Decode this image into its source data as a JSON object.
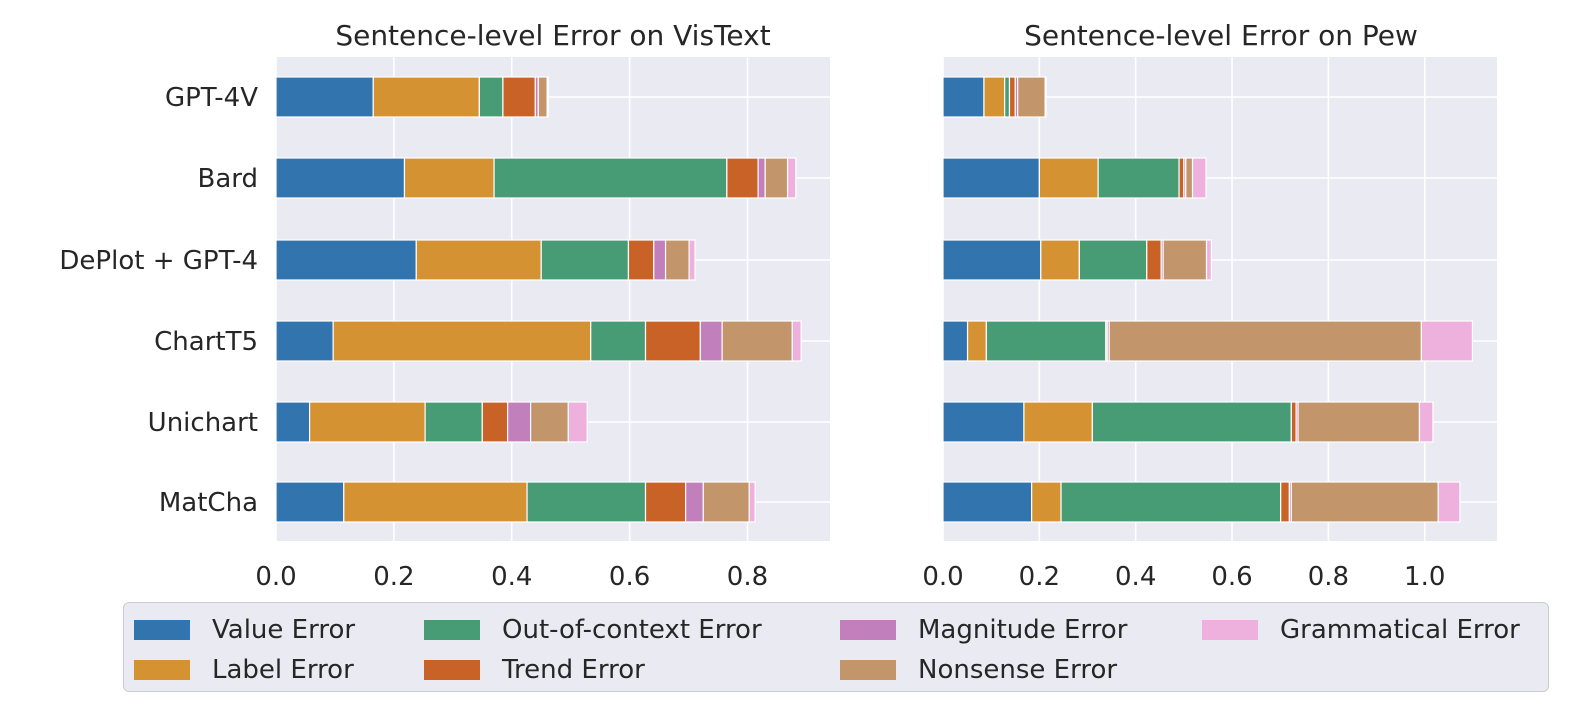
{
  "chart_data": [
    {
      "type": "bar",
      "orientation": "horizontal",
      "stacked": true,
      "title": "Sentence-level Error on VisText",
      "categories": [
        "GPT-4V",
        "Bard",
        "DePlot + GPT-4",
        "ChartT5",
        "Unichart",
        "MatCha"
      ],
      "series": [
        {
          "name": "Value Error",
          "values": [
            0.165,
            0.218,
            0.238,
            0.097,
            0.057,
            0.115
          ]
        },
        {
          "name": "Label Error",
          "values": [
            0.18,
            0.152,
            0.212,
            0.437,
            0.196,
            0.311
          ]
        },
        {
          "name": "Out-of-context Error",
          "values": [
            0.04,
            0.395,
            0.148,
            0.093,
            0.097,
            0.201
          ]
        },
        {
          "name": "Trend Error",
          "values": [
            0.055,
            0.053,
            0.043,
            0.093,
            0.043,
            0.068
          ]
        },
        {
          "name": "Magnitude Error",
          "values": [
            0.005,
            0.012,
            0.02,
            0.037,
            0.039,
            0.03
          ]
        },
        {
          "name": "Nonsense Error",
          "values": [
            0.015,
            0.038,
            0.04,
            0.119,
            0.064,
            0.078
          ]
        },
        {
          "name": "Grammatical Error",
          "values": [
            0.002,
            0.014,
            0.01,
            0.015,
            0.032,
            0.01
          ]
        }
      ],
      "xlim": [
        0,
        0.94
      ],
      "xticks": [
        "0.0",
        "0.2",
        "0.4",
        "0.6",
        "0.8"
      ],
      "grid": true
    },
    {
      "type": "bar",
      "orientation": "horizontal",
      "stacked": true,
      "title": "Sentence-level Error on Pew",
      "categories": [
        "GPT-4V",
        "Bard",
        "DePlot + GPT-4",
        "ChartT5",
        "Unichart",
        "MatCha"
      ],
      "series": [
        {
          "name": "Value Error",
          "values": [
            0.085,
            0.2,
            0.203,
            0.051,
            0.168,
            0.184
          ]
        },
        {
          "name": "Label Error",
          "values": [
            0.043,
            0.122,
            0.08,
            0.039,
            0.142,
            0.061
          ]
        },
        {
          "name": "Out-of-context Error",
          "values": [
            0.01,
            0.168,
            0.14,
            0.248,
            0.413,
            0.456
          ]
        },
        {
          "name": "Trend Error",
          "values": [
            0.012,
            0.01,
            0.03,
            0.003,
            0.01,
            0.018
          ]
        },
        {
          "name": "Magnitude Error",
          "values": [
            0.005,
            0.004,
            0.004,
            0.004,
            0.004,
            0.004
          ]
        },
        {
          "name": "Nonsense Error",
          "values": [
            0.057,
            0.014,
            0.09,
            0.648,
            0.252,
            0.305
          ]
        },
        {
          "name": "Grammatical Error",
          "values": [
            0.002,
            0.028,
            0.01,
            0.106,
            0.028,
            0.045
          ]
        }
      ],
      "xlim": [
        0,
        1.15
      ],
      "xticks": [
        "0.0",
        "0.2",
        "0.4",
        "0.6",
        "0.8",
        "1.0"
      ],
      "grid": true
    }
  ],
  "colors": {
    "Value Error": "#3274ad",
    "Label Error": "#d59232",
    "Out-of-context Error": "#479c76",
    "Trend Error": "#c96227",
    "Magnitude Error": "#c17fbb",
    "Nonsense Error": "#c2956a",
    "Grammatical Error": "#eeb1dd",
    "plot_background": "#eaeaf2",
    "grid": "#ffffff"
  },
  "legend": {
    "placement": "bottom",
    "items": [
      {
        "label": "Value Error",
        "color": "#3274ad"
      },
      {
        "label": "Label Error",
        "color": "#d59232"
      },
      {
        "label": "Out-of-context Error",
        "color": "#479c76"
      },
      {
        "label": "Trend Error",
        "color": "#c96227"
      },
      {
        "label": "Magnitude Error",
        "color": "#c17fbb"
      },
      {
        "label": "Nonsense Error",
        "color": "#c2956a"
      },
      {
        "label": "Grammatical Error",
        "color": "#eeb1dd"
      }
    ]
  }
}
